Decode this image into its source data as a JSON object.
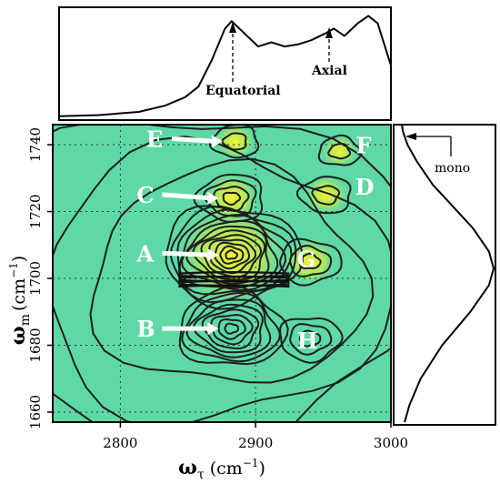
{
  "chart_data": {
    "type": "heatmap",
    "title": "",
    "xlabel": "ω",
    "xlabel_sub": "τ",
    "xlabel_unit": "(cm",
    "xlabel_unit_exp": "−1",
    "ylabel": "ω",
    "ylabel_sub": "m",
    "ylabel_unit": "(cm",
    "ylabel_unit_exp": "−1",
    "xlim": [
      2750,
      3000
    ],
    "ylim": [
      1657,
      1746
    ],
    "x_ticks": [
      2800,
      2900,
      3000
    ],
    "y_ticks": [
      1660,
      1680,
      1700,
      1720,
      1740
    ],
    "grid": "dotted",
    "colors": {
      "background": "#5ed9a6",
      "positive_peak": "#f5f232",
      "contour": "#1e1e1e",
      "label": "#ffffff"
    },
    "peaks": [
      {
        "label": "A",
        "x": 2882,
        "y": 1707,
        "sign": "positive",
        "amplitude": 1.0
      },
      {
        "label": "B",
        "x": 2882,
        "y": 1685,
        "sign": "negative",
        "amplitude": 0.7
      },
      {
        "label": "C",
        "x": 2882,
        "y": 1724,
        "sign": "positive",
        "amplitude": 0.3
      },
      {
        "label": "D",
        "x": 2952,
        "y": 1725,
        "sign": "positive",
        "amplitude": 0.15
      },
      {
        "label": "E",
        "x": 2885,
        "y": 1741,
        "sign": "positive",
        "amplitude": 0.1
      },
      {
        "label": "F",
        "x": 2962,
        "y": 1738,
        "sign": "positive",
        "amplitude": 0.05
      },
      {
        "label": "G",
        "x": 2940,
        "y": 1705,
        "sign": "positive",
        "amplitude": 0.25
      },
      {
        "label": "H",
        "x": 2940,
        "y": 1682,
        "sign": "negative",
        "amplitude": 0.25
      }
    ],
    "top_panel": {
      "type": "line",
      "description_labels": [
        "Equatorial",
        "Axial"
      ],
      "annotations": [
        {
          "text": "Equatorial",
          "x": 2880
        },
        {
          "text": "Axial",
          "x": 2957
        }
      ],
      "x": [
        2750,
        2780,
        2810,
        2830,
        2845,
        2855,
        2865,
        2875,
        2880,
        2890,
        2900,
        2910,
        2920,
        2930,
        2940,
        2950,
        2957,
        2965,
        2975,
        2983,
        2990,
        3000
      ],
      "y": [
        0.02,
        0.03,
        0.06,
        0.12,
        0.2,
        0.3,
        0.55,
        0.85,
        0.92,
        0.8,
        0.68,
        0.72,
        0.68,
        0.7,
        0.74,
        0.8,
        0.85,
        0.78,
        0.9,
        0.97,
        0.9,
        0.5
      ]
    },
    "right_panel": {
      "type": "line",
      "annotations": [
        {
          "text": "mono",
          "y": 1744
        }
      ],
      "y": [
        1657,
        1662,
        1670,
        1680,
        1690,
        1698,
        1703,
        1708,
        1715,
        1722,
        1728,
        1735,
        1740,
        1744,
        1746
      ],
      "x": [
        0.05,
        0.1,
        0.22,
        0.45,
        0.75,
        0.95,
        1.0,
        0.95,
        0.78,
        0.55,
        0.35,
        0.18,
        0.08,
        0.03,
        0.02
      ]
    }
  },
  "labels": {
    "mono": "mono",
    "equatorial": "Equatorial",
    "axial": "Axial"
  }
}
